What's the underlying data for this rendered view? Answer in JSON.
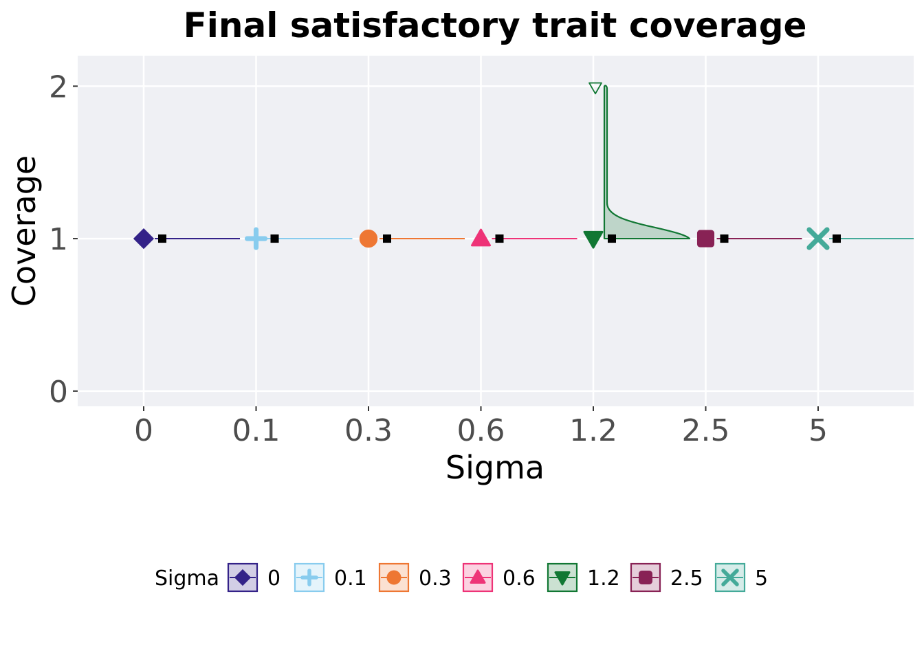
{
  "chart_data": {
    "type": "scatter",
    "title": "Final satisfactory trait coverage",
    "xlabel": "Sigma",
    "ylabel": "Coverage",
    "categories": [
      "0",
      "0.1",
      "0.3",
      "0.6",
      "1.2",
      "2.5",
      "5"
    ],
    "y_ticks": [
      "0",
      "1",
      "2"
    ],
    "ylim": [
      -0.1,
      2.2
    ],
    "grid": true,
    "legend": {
      "title": "Sigma",
      "position": "bottom"
    },
    "series": [
      {
        "name": "0",
        "color": "#332288",
        "shape": "diamond",
        "values": [
          1
        ],
        "mean": 1,
        "outliers": []
      },
      {
        "name": "0.1",
        "color": "#88CCEE",
        "shape": "plus",
        "values": [
          1
        ],
        "mean": 1,
        "outliers": []
      },
      {
        "name": "0.3",
        "color": "#EE7733",
        "shape": "circle",
        "values": [
          1
        ],
        "mean": 1,
        "outliers": []
      },
      {
        "name": "0.6",
        "color": "#EE3377",
        "shape": "triangle-up",
        "values": [
          1
        ],
        "mean": 1,
        "outliers": []
      },
      {
        "name": "1.2",
        "color": "#117733",
        "shape": "triangle-down",
        "values": [
          1
        ],
        "mean": 1,
        "outliers": [
          2
        ]
      },
      {
        "name": "2.5",
        "color": "#882255",
        "shape": "square",
        "values": [
          1
        ],
        "mean": 1,
        "outliers": []
      },
      {
        "name": "5",
        "color": "#44AA99",
        "shape": "x",
        "values": [
          1
        ],
        "mean": 1,
        "outliers": []
      }
    ]
  }
}
